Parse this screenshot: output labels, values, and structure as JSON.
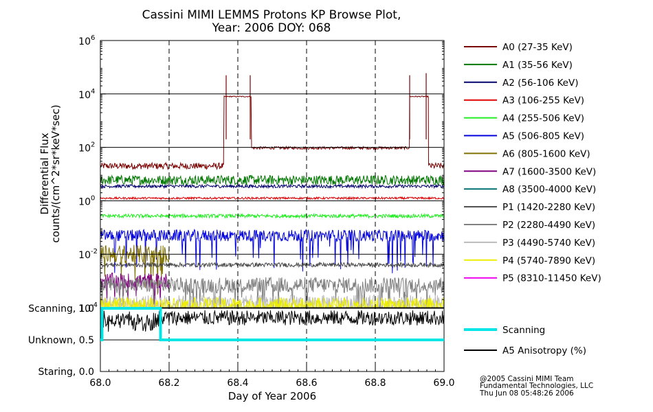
{
  "title_line1": "Cassini MIMI LEMMS Protons KP Browse Plot,",
  "title_line2": "Year: 2006 DOY: 068",
  "credits": [
    "@2005 Cassini MIMI Team",
    "Fundamental Technologies, LLC",
    "Thu Jun 08 05:48:26 2006"
  ],
  "chart_data": [
    {
      "type": "line",
      "panel": "flux",
      "xlabel": "Day of Year 2006",
      "ylabel_line1": "Differential Flux",
      "ylabel_line2": "counts/(cm^2*sr*keV*sec)",
      "xlim": [
        68.0,
        69.0
      ],
      "ylim": [
        0.0001,
        1000000
      ],
      "yscale": "log",
      "yticks": [
        {
          "base": "10",
          "exp": "-4",
          "value": 0.0001
        },
        {
          "base": "10",
          "exp": "-2",
          "value": 0.01
        },
        {
          "base": "10",
          "exp": "0",
          "value": 1
        },
        {
          "base": "10",
          "exp": "2",
          "value": 100
        },
        {
          "base": "10",
          "exp": "4",
          "value": 10000
        },
        {
          "base": "10",
          "exp": "6",
          "value": 1000000
        }
      ],
      "xticks": [
        "68.0",
        "68.2",
        "68.4",
        "68.6",
        "68.8",
        "69.0"
      ],
      "xtick_values": [
        68.0,
        68.2,
        68.4,
        68.6,
        68.8,
        69.0
      ],
      "dashed_x_lines": [
        68.2,
        68.4,
        68.6,
        68.8
      ],
      "solid_y_lines": [
        0.01,
        1,
        100,
        10000
      ],
      "series": [
        {
          "name": "A0 (27-35 KeV)",
          "color": "#7a0000",
          "segments": [
            {
              "x0": 68.0,
              "x1": 68.36,
              "level": 20,
              "noise": 0.12
            },
            {
              "x0": 68.36,
              "x1": 68.44,
              "level": 8000,
              "noise": 0.02
            },
            {
              "x0": 68.44,
              "x1": 68.9,
              "level": 95,
              "noise": 0.05
            },
            {
              "x0": 68.9,
              "x1": 68.955,
              "level": 8000,
              "noise": 0.02
            },
            {
              "x0": 68.955,
              "x1": 69.0,
              "level": 20,
              "noise": 0.12
            }
          ],
          "spikes": [
            {
              "x": 68.366,
              "v": 50000
            },
            {
              "x": 68.436,
              "v": 50000
            },
            {
              "x": 68.9,
              "v": 50000
            },
            {
              "x": 68.948,
              "v": 60000
            }
          ]
        },
        {
          "name": "A1 (35-56 KeV)",
          "color": "#007700",
          "segments": [
            {
              "x0": 68.0,
              "x1": 69.0,
              "level": 6,
              "noise": 0.18
            }
          ],
          "spikes": []
        },
        {
          "name": "A2 (56-106 KeV)",
          "color": "#00006e",
          "segments": [
            {
              "x0": 68.0,
              "x1": 69.0,
              "level": 3.5,
              "noise": 0.06
            }
          ],
          "spikes": []
        },
        {
          "name": "A3 (106-255 KeV)",
          "color": "#e00000",
          "segments": [
            {
              "x0": 68.0,
              "x1": 69.0,
              "level": 1.25,
              "noise": 0.04
            }
          ],
          "spikes": []
        },
        {
          "name": "A4 (255-506 KeV)",
          "color": "#22ee22",
          "segments": [
            {
              "x0": 68.0,
              "x1": 69.0,
              "level": 0.27,
              "noise": 0.07
            }
          ],
          "spikes": []
        },
        {
          "name": "A5 (506-805 KeV)",
          "color": "#0000dd",
          "segments": [
            {
              "x0": 68.0,
              "x1": 69.0,
              "level": 0.05,
              "noise": 0.22
            }
          ],
          "spikes": []
        },
        {
          "name": "A6 (805-1600 KeV)",
          "color": "#807000",
          "segments": [
            {
              "x0": 68.0,
              "x1": 68.2,
              "level": 0.01,
              "noise": 0.35
            }
          ],
          "spikes": []
        },
        {
          "name": "A7 (1600-3500 KeV)",
          "color": "#800080",
          "segments": [
            {
              "x0": 68.0,
              "x1": 68.2,
              "level": 0.001,
              "noise": 0.3
            }
          ],
          "spikes": []
        },
        {
          "name": "A8 (3500-4000 KeV)",
          "color": "#007070",
          "segments": [],
          "spikes": []
        },
        {
          "name": "P1 (1420-2280 KeV)",
          "color": "#4a4a4a",
          "segments": [
            {
              "x0": 68.0,
              "x1": 69.0,
              "level": 0.004,
              "noise": 0.08
            }
          ],
          "spikes": []
        },
        {
          "name": "P2 (2280-4490 KeV)",
          "color": "#808080",
          "segments": [
            {
              "x0": 68.0,
              "x1": 69.0,
              "level": 0.0007,
              "noise": 0.3
            }
          ],
          "spikes": []
        },
        {
          "name": "P3 (4490-5740 KeV)",
          "color": "#bbbbbb",
          "segments": [
            {
              "x0": 68.0,
              "x1": 69.0,
              "level": 0.00015,
              "noise": 0.3
            }
          ],
          "spikes": []
        },
        {
          "name": "P4 (5740-7890 KeV)",
          "color": "#eeee00",
          "segments": [
            {
              "x0": 68.0,
              "x1": 69.0,
              "level": 0.00012,
              "noise": 0.3
            }
          ],
          "spikes": []
        },
        {
          "name": "P5 (8310-11450 KeV)",
          "color": "#ee00ee",
          "segments": [],
          "spikes": []
        }
      ]
    },
    {
      "type": "line",
      "panel": "status",
      "xlim": [
        68.0,
        69.0
      ],
      "ylim": [
        0.0,
        1.0
      ],
      "yticks": [
        {
          "label": "Scanning, 1.0",
          "value": 1.0
        },
        {
          "label": "Unknown, 0.5",
          "value": 0.5
        },
        {
          "label": "Staring, 0.0",
          "value": 0.0
        }
      ],
      "series": [
        {
          "name": "Scanning",
          "color": "#00e5e5",
          "points": [
            [
              68.0,
              0.5
            ],
            [
              68.005,
              0.5
            ],
            [
              68.005,
              1.0
            ],
            [
              68.175,
              1.0
            ],
            [
              68.175,
              0.5
            ],
            [
              69.0,
              0.5
            ]
          ]
        },
        {
          "name": "A5 Anisotropy (%)",
          "color": "#000000",
          "level": 0.85,
          "noise": 0.12
        }
      ]
    }
  ]
}
